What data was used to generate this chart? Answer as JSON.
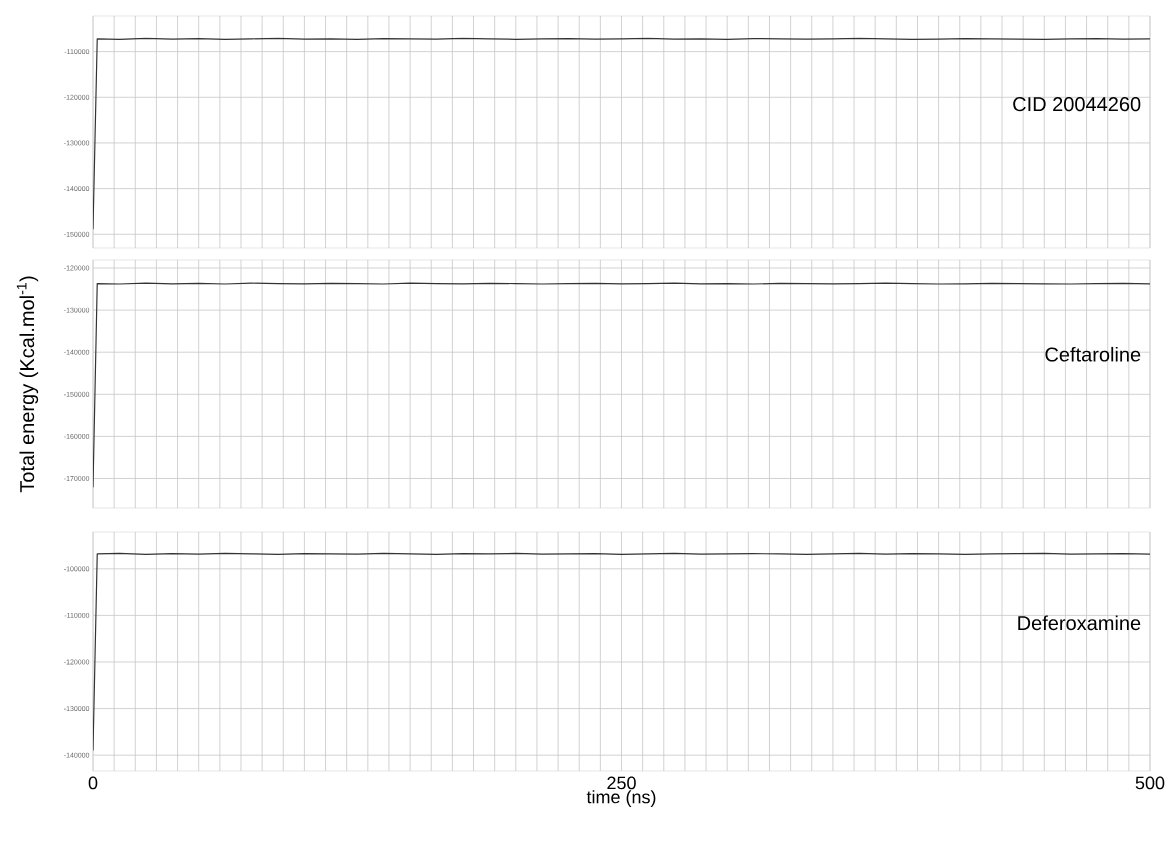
{
  "chart_data": [
    {
      "type": "line",
      "annotations": [
        "CID 20044260"
      ],
      "grid": true,
      "tick_labels": "y",
      "x": [
        0,
        2,
        12.5,
        25,
        37.5,
        50,
        62.5,
        75,
        87.5,
        100,
        112.5,
        125,
        137.5,
        150,
        162.5,
        175,
        187.5,
        200,
        212.5,
        225,
        237.5,
        250,
        262.5,
        275,
        287.5,
        300,
        312.5,
        325,
        337.5,
        350,
        362.5,
        375,
        387.5,
        400,
        412.5,
        425,
        437.5,
        450,
        462.5,
        475,
        487.5,
        500
      ],
      "series": [
        {
          "color": "#333333",
          "values": [
            -148900,
            -107200,
            -107300,
            -107100,
            -107250,
            -107150,
            -107300,
            -107200,
            -107100,
            -107250,
            -107200,
            -107300,
            -107150,
            -107200,
            -107250,
            -107100,
            -107200,
            -107300,
            -107200,
            -107150,
            -107250,
            -107200,
            -107100,
            -107250,
            -107200,
            -107300,
            -107150,
            -107200,
            -107250,
            -107200,
            -107100,
            -107200,
            -107300,
            -107250,
            -107150,
            -107200,
            -107250,
            -107300,
            -107200,
            -107150,
            -107250,
            -107200
          ]
        }
      ],
      "xlim": [
        0,
        500
      ],
      "ylim": [
        -153000,
        -102200
      ],
      "xticks": [
        0,
        {
          "value": 10,
          "label": null
        },
        {
          "value": 20,
          "label": null
        },
        {
          "value": 30,
          "label": null
        },
        {
          "value": 40,
          "label": null
        },
        {
          "value": 50,
          "label": null
        },
        {
          "value": 60,
          "label": null
        },
        {
          "value": 70,
          "label": null
        },
        {
          "value": 80,
          "label": null
        },
        {
          "value": 90,
          "label": null
        },
        {
          "value": 100,
          "label": null
        },
        {
          "value": 110,
          "label": null
        },
        {
          "value": 120,
          "label": null
        },
        {
          "value": 130,
          "label": null
        },
        {
          "value": 140,
          "label": null
        },
        {
          "value": 150,
          "label": null
        },
        {
          "value": 160,
          "label": null
        },
        {
          "value": 170,
          "label": null
        },
        {
          "value": 180,
          "label": null
        },
        {
          "value": 190,
          "label": null
        },
        {
          "value": 200,
          "label": null
        },
        {
          "value": 210,
          "label": null
        },
        {
          "value": 220,
          "label": null
        },
        {
          "value": 230,
          "label": null
        },
        {
          "value": 240,
          "label": null
        },
        250,
        {
          "value": 260,
          "label": null
        },
        {
          "value": 270,
          "label": null
        },
        {
          "value": 280,
          "label": null
        },
        {
          "value": 290,
          "label": null
        },
        {
          "value": 300,
          "label": null
        },
        {
          "value": 310,
          "label": null
        },
        {
          "value": 320,
          "label": null
        },
        {
          "value": 330,
          "label": null
        },
        {
          "value": 340,
          "label": null
        },
        {
          "value": 350,
          "label": null
        },
        {
          "value": 360,
          "label": null
        },
        {
          "value": 370,
          "label": null
        },
        {
          "value": 380,
          "label": null
        },
        {
          "value": 390,
          "label": null
        },
        {
          "value": 400,
          "label": null
        },
        {
          "value": 410,
          "label": null
        },
        {
          "value": 420,
          "label": null
        },
        {
          "value": 430,
          "label": null
        },
        {
          "value": 440,
          "label": null
        },
        {
          "value": 450,
          "label": null
        },
        {
          "value": 460,
          "label": null
        },
        {
          "value": 470,
          "label": null
        },
        {
          "value": 480,
          "label": null
        },
        {
          "value": 490,
          "label": null
        },
        500
      ],
      "yticks": [
        -150000,
        -140000,
        -130000,
        -120000,
        -110000
      ]
    },
    {
      "type": "line",
      "ylabel": "Total energy (Kcal.mol$^{-1}$)",
      "annotations": [
        "Ceftaroline"
      ],
      "grid": true,
      "tick_labels": "y",
      "x": [
        0,
        2,
        12.5,
        25,
        37.5,
        50,
        62.5,
        75,
        87.5,
        100,
        112.5,
        125,
        137.5,
        150,
        162.5,
        175,
        187.5,
        200,
        212.5,
        225,
        237.5,
        250,
        262.5,
        275,
        287.5,
        300,
        312.5,
        325,
        337.5,
        350,
        362.5,
        375,
        387.5,
        400,
        412.5,
        425,
        437.5,
        450,
        462.5,
        475,
        487.5,
        500
      ],
      "series": [
        {
          "color": "#333333",
          "values": [
            -172100,
            -123700,
            -123800,
            -123600,
            -123750,
            -123650,
            -123800,
            -123600,
            -123700,
            -123750,
            -123650,
            -123700,
            -123800,
            -123600,
            -123700,
            -123750,
            -123650,
            -123700,
            -123800,
            -123700,
            -123650,
            -123750,
            -123700,
            -123600,
            -123750,
            -123700,
            -123800,
            -123650,
            -123700,
            -123750,
            -123700,
            -123600,
            -123700,
            -123800,
            -123750,
            -123650,
            -123700,
            -123750,
            -123800,
            -123700,
            -123650,
            -123750
          ]
        }
      ],
      "xlim": [
        0,
        500
      ],
      "ylim": [
        -177000,
        -118100
      ],
      "xticks": [
        0,
        {
          "value": 10,
          "label": null
        },
        {
          "value": 20,
          "label": null
        },
        {
          "value": 30,
          "label": null
        },
        {
          "value": 40,
          "label": null
        },
        {
          "value": 50,
          "label": null
        },
        {
          "value": 60,
          "label": null
        },
        {
          "value": 70,
          "label": null
        },
        {
          "value": 80,
          "label": null
        },
        {
          "value": 90,
          "label": null
        },
        {
          "value": 100,
          "label": null
        },
        {
          "value": 110,
          "label": null
        },
        {
          "value": 120,
          "label": null
        },
        {
          "value": 130,
          "label": null
        },
        {
          "value": 140,
          "label": null
        },
        {
          "value": 150,
          "label": null
        },
        {
          "value": 160,
          "label": null
        },
        {
          "value": 170,
          "label": null
        },
        {
          "value": 180,
          "label": null
        },
        {
          "value": 190,
          "label": null
        },
        {
          "value": 200,
          "label": null
        },
        {
          "value": 210,
          "label": null
        },
        {
          "value": 220,
          "label": null
        },
        {
          "value": 230,
          "label": null
        },
        {
          "value": 240,
          "label": null
        },
        250,
        {
          "value": 260,
          "label": null
        },
        {
          "value": 270,
          "label": null
        },
        {
          "value": 280,
          "label": null
        },
        {
          "value": 290,
          "label": null
        },
        {
          "value": 300,
          "label": null
        },
        {
          "value": 310,
          "label": null
        },
        {
          "value": 320,
          "label": null
        },
        {
          "value": 330,
          "label": null
        },
        {
          "value": 340,
          "label": null
        },
        {
          "value": 350,
          "label": null
        },
        {
          "value": 360,
          "label": null
        },
        {
          "value": 370,
          "label": null
        },
        {
          "value": 380,
          "label": null
        },
        {
          "value": 390,
          "label": null
        },
        {
          "value": 400,
          "label": null
        },
        {
          "value": 410,
          "label": null
        },
        {
          "value": 420,
          "label": null
        },
        {
          "value": 430,
          "label": null
        },
        {
          "value": 440,
          "label": null
        },
        {
          "value": 450,
          "label": null
        },
        {
          "value": 460,
          "label": null
        },
        {
          "value": 470,
          "label": null
        },
        {
          "value": 480,
          "label": null
        },
        {
          "value": 490,
          "label": null
        },
        500
      ],
      "yticks": [
        -170000,
        -160000,
        -150000,
        -140000,
        -130000,
        -120000
      ]
    },
    {
      "type": "line",
      "xlabel": "time (ns)",
      "annotations": [
        "Deferoxamine"
      ],
      "grid": true,
      "x": [
        0,
        2,
        12.5,
        25,
        37.5,
        50,
        62.5,
        75,
        87.5,
        100,
        112.5,
        125,
        137.5,
        150,
        162.5,
        175,
        187.5,
        200,
        212.5,
        225,
        237.5,
        250,
        262.5,
        275,
        287.5,
        300,
        312.5,
        325,
        337.5,
        350,
        362.5,
        375,
        387.5,
        400,
        412.5,
        425,
        437.5,
        450,
        462.5,
        475,
        487.5,
        500
      ],
      "series": [
        {
          "color": "#333333",
          "values": [
            -139000,
            -96800,
            -96700,
            -96900,
            -96750,
            -96850,
            -96700,
            -96800,
            -96900,
            -96750,
            -96800,
            -96850,
            -96700,
            -96800,
            -96900,
            -96750,
            -96800,
            -96700,
            -96850,
            -96800,
            -96750,
            -96900,
            -96800,
            -96700,
            -96850,
            -96800,
            -96750,
            -96800,
            -96900,
            -96800,
            -96700,
            -96850,
            -96750,
            -96800,
            -96900,
            -96800,
            -96750,
            -96700,
            -96850,
            -96800,
            -96750,
            -96850
          ]
        }
      ],
      "xlim": [
        0,
        500
      ],
      "ylim": [
        -143400,
        -92100
      ],
      "xticks": [
        0,
        {
          "value": 10,
          "label": null
        },
        {
          "value": 20,
          "label": null
        },
        {
          "value": 30,
          "label": null
        },
        {
          "value": 40,
          "label": null
        },
        {
          "value": 50,
          "label": null
        },
        {
          "value": 60,
          "label": null
        },
        {
          "value": 70,
          "label": null
        },
        {
          "value": 80,
          "label": null
        },
        {
          "value": 90,
          "label": null
        },
        {
          "value": 100,
          "label": null
        },
        {
          "value": 110,
          "label": null
        },
        {
          "value": 120,
          "label": null
        },
        {
          "value": 130,
          "label": null
        },
        {
          "value": 140,
          "label": null
        },
        {
          "value": 150,
          "label": null
        },
        {
          "value": 160,
          "label": null
        },
        {
          "value": 170,
          "label": null
        },
        {
          "value": 180,
          "label": null
        },
        {
          "value": 190,
          "label": null
        },
        {
          "value": 200,
          "label": null
        },
        {
          "value": 210,
          "label": null
        },
        {
          "value": 220,
          "label": null
        },
        {
          "value": 230,
          "label": null
        },
        {
          "value": 240,
          "label": null
        },
        250,
        {
          "value": 260,
          "label": null
        },
        {
          "value": 270,
          "label": null
        },
        {
          "value": 280,
          "label": null
        },
        {
          "value": 290,
          "label": null
        },
        {
          "value": 300,
          "label": null
        },
        {
          "value": 310,
          "label": null
        },
        {
          "value": 320,
          "label": null
        },
        {
          "value": 330,
          "label": null
        },
        {
          "value": 340,
          "label": null
        },
        {
          "value": 350,
          "label": null
        },
        {
          "value": 360,
          "label": null
        },
        {
          "value": 370,
          "label": null
        },
        {
          "value": 380,
          "label": null
        },
        {
          "value": 390,
          "label": null
        },
        {
          "value": 400,
          "label": null
        },
        {
          "value": 410,
          "label": null
        },
        {
          "value": 420,
          "label": null
        },
        {
          "value": 430,
          "label": null
        },
        {
          "value": 440,
          "label": null
        },
        {
          "value": 450,
          "label": null
        },
        {
          "value": 460,
          "label": null
        },
        {
          "value": 470,
          "label": null
        },
        {
          "value": 480,
          "label": null
        },
        {
          "value": 490,
          "label": null
        },
        500
      ],
      "yticks": [
        -140000,
        -130000,
        -120000,
        -110000,
        -100000
      ]
    }
  ]
}
